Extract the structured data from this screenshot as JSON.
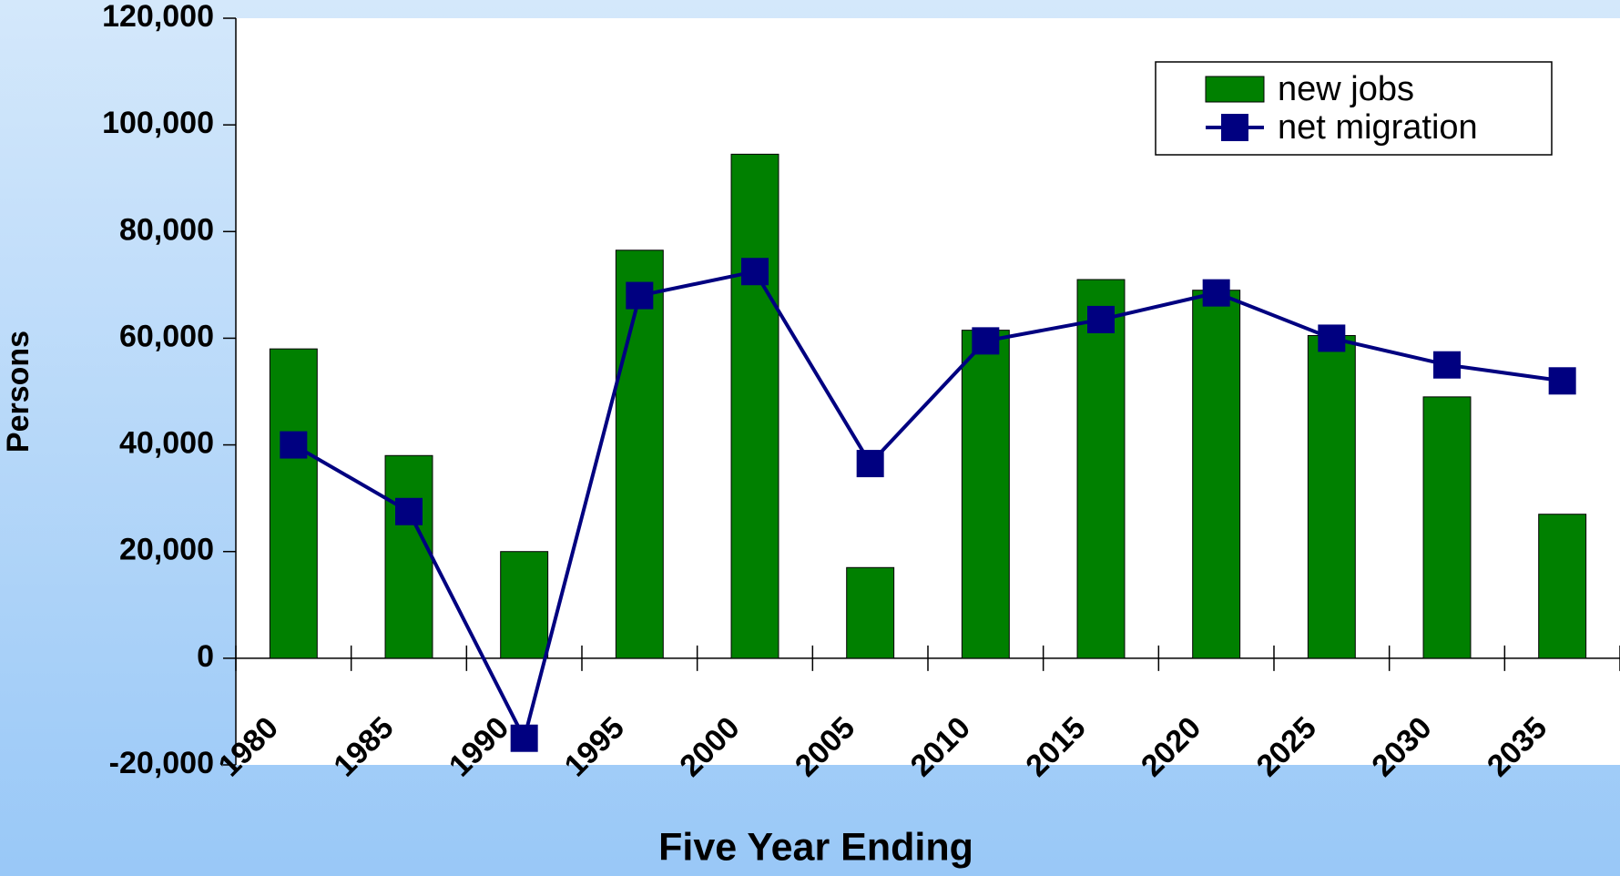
{
  "chart_data": {
    "type": "bar-line",
    "x_label": "Five Year Ending",
    "y_label": "Persons",
    "categories": [
      "1980",
      "1985",
      "1990",
      "1995",
      "2000",
      "2005",
      "2010",
      "2015",
      "2020",
      "2025",
      "2030",
      "2035"
    ],
    "series": [
      {
        "name": "new jobs",
        "type": "bar",
        "color": "#008000",
        "values": [
          58000,
          38000,
          20000,
          76500,
          94500,
          17000,
          61500,
          71000,
          69000,
          60500,
          49000,
          27000
        ]
      },
      {
        "name": "net migration",
        "type": "line",
        "color": "#000080",
        "values": [
          40000,
          27500,
          -15000,
          68000,
          72500,
          36500,
          59500,
          63500,
          68500,
          60000,
          55000,
          52000
        ]
      }
    ],
    "ylim": [
      -20000,
      120000
    ],
    "yticks": [
      {
        "value": -20000,
        "label": "-20,000"
      },
      0,
      {
        "value": 20000,
        "label": "20,000"
      },
      {
        "value": 40000,
        "label": "40,000"
      },
      {
        "value": 60000,
        "label": "60,000"
      },
      {
        "value": 80000,
        "label": "80,000"
      },
      {
        "value": 100000,
        "label": "100,000"
      },
      {
        "value": 120000,
        "label": "120,000"
      }
    ],
    "legend": "upper right"
  }
}
